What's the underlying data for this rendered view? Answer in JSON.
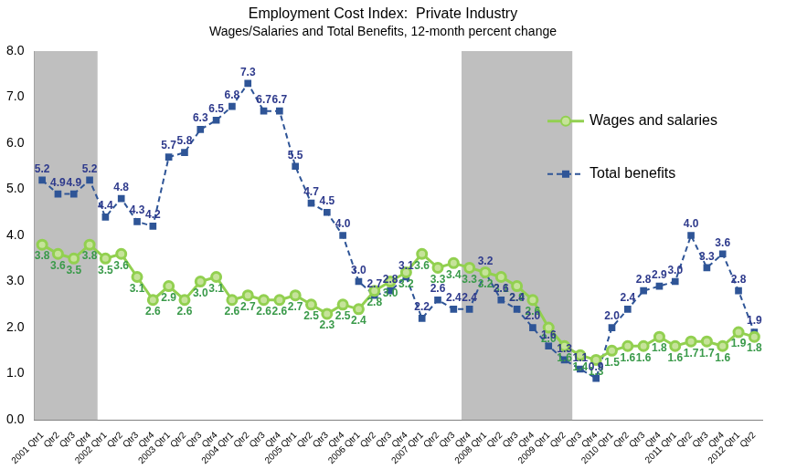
{
  "chart_data": {
    "type": "line",
    "title": "Employment Cost Index:  Private Industry",
    "subtitle": "Wages/Salaries and Total Benefits, 12-month percent change",
    "categories": [
      "2001 Qtr1",
      "Qtr2",
      "Qtr3",
      "Qtr4",
      "2002 Qtr1",
      "Qtr2",
      "Qtr3",
      "Qtr4",
      "2003 Qtr1",
      "Qtr2",
      "Qtr3",
      "Qtr4",
      "2004 Qtr1",
      "Qtr2",
      "Qtr3",
      "Qtr4",
      "2005 Qtr1",
      "Qtr2",
      "Qtr3",
      "Qtr4",
      "2006 Qtr1",
      "Qtr2",
      "Qtr3",
      "Qtr4",
      "2007 Qtr1",
      "Qtr2",
      "Qtr3",
      "Qtr4",
      "2008 Qtr1",
      "Qtr2",
      "Qtr3",
      "Qtr4",
      "2009 Qtr1",
      "Qtr2",
      "Qtr3",
      "Qtr4",
      "2010 Qtr1",
      "Qtr2",
      "Qtr3",
      "Qtr4",
      "2011 Qtr1",
      "Qtr2",
      "Qtr3",
      "Qtr4",
      "2012 Qtr1",
      "Qtr2"
    ],
    "series": [
      {
        "name": "Wages and salaries",
        "color": "#92d050",
        "marker": "circle",
        "line_style": "solid",
        "values": [
          3.8,
          3.6,
          3.5,
          3.8,
          3.5,
          3.6,
          3.1,
          2.6,
          2.9,
          2.6,
          3.0,
          3.1,
          2.6,
          2.7,
          2.6,
          2.6,
          2.7,
          2.5,
          2.3,
          2.5,
          2.4,
          2.8,
          3.0,
          3.2,
          3.6,
          3.3,
          3.4,
          3.3,
          3.2,
          3.1,
          2.9,
          2.6,
          2.0,
          1.6,
          1.4,
          1.3,
          1.5,
          1.6,
          1.6,
          1.8,
          1.6,
          1.7,
          1.7,
          1.6,
          1.9,
          1.8
        ],
        "value_labels": [
          "3.8",
          "3.6",
          "3.5",
          "3.8",
          "3.5",
          "3.6",
          "3.1",
          "2.6",
          "2.9",
          "2.6",
          "3.0",
          "3.1",
          "2.6",
          "2.7",
          "2.6",
          "2.6",
          "2.7",
          "2.5",
          "2.3",
          "2.5",
          "2.4",
          "2.8",
          "3.0",
          "3.2",
          "3.6",
          "3.3",
          "3.4",
          "3.3",
          "3.2",
          "3.1",
          "2.9",
          "2.6",
          "2.0",
          "1.6",
          "1.4",
          "1.3",
          "1.5",
          "1.6",
          "1.6",
          "1.8",
          "1.6",
          "1.7",
          "1.7",
          "1.6",
          "1.9",
          "1.8"
        ]
      },
      {
        "name": "Total benefits",
        "color": "#2f5597",
        "marker": "square",
        "line_style": "dashed",
        "values": [
          5.2,
          4.9,
          4.9,
          5.2,
          4.4,
          4.8,
          4.3,
          4.2,
          5.7,
          5.8,
          6.3,
          6.5,
          6.8,
          7.3,
          6.7,
          6.7,
          5.5,
          4.7,
          4.5,
          4.0,
          3.0,
          2.7,
          2.8,
          3.1,
          2.2,
          2.6,
          2.4,
          2.4,
          3.2,
          2.6,
          2.4,
          2.0,
          1.6,
          1.3,
          1.1,
          0.9,
          2.0,
          2.4,
          2.8,
          2.9,
          3.0,
          4.0,
          3.3,
          3.6,
          2.8,
          1.9
        ],
        "value_labels": [
          "5.2",
          "4.9",
          "4.9",
          "5.2",
          "4.4",
          "4.8",
          "4.3",
          "4.2",
          "5.7",
          "5.8",
          "6.3",
          "6.5",
          "6.8",
          "7.3",
          "6.7",
          "6.7",
          "5.5",
          "4.7",
          "4.5",
          "4.0",
          "3.0",
          "2.7",
          "2.8",
          "3.1",
          "2.2",
          "2.6",
          "2.4",
          "2.4",
          "3.2",
          "2.6",
          "2.4",
          "2.0",
          "1.6",
          "1.3",
          "1.1",
          "0.9",
          "2.0",
          "2.4",
          "2.8",
          "2.9",
          "3.0",
          "4.0",
          "3.3",
          "3.6",
          "2.8",
          "1.9"
        ]
      }
    ],
    "shaded_ranges": [
      [
        0,
        3
      ],
      [
        27,
        33
      ]
    ],
    "ylim": [
      0,
      8
    ],
    "yticks": [
      {
        "value": 0,
        "label": "0.0"
      },
      {
        "value": 1,
        "label": "1.0"
      },
      {
        "value": 2,
        "label": "2.0"
      },
      {
        "value": 3,
        "label": "3.0"
      },
      {
        "value": 4,
        "label": "4.0"
      },
      {
        "value": 5,
        "label": "5.0"
      },
      {
        "value": 6,
        "label": "6.0"
      },
      {
        "value": 7,
        "label": "7.0"
      },
      {
        "value": 8,
        "label": "8.0"
      }
    ],
    "grid": false,
    "legend": "right",
    "data_labels": true
  }
}
